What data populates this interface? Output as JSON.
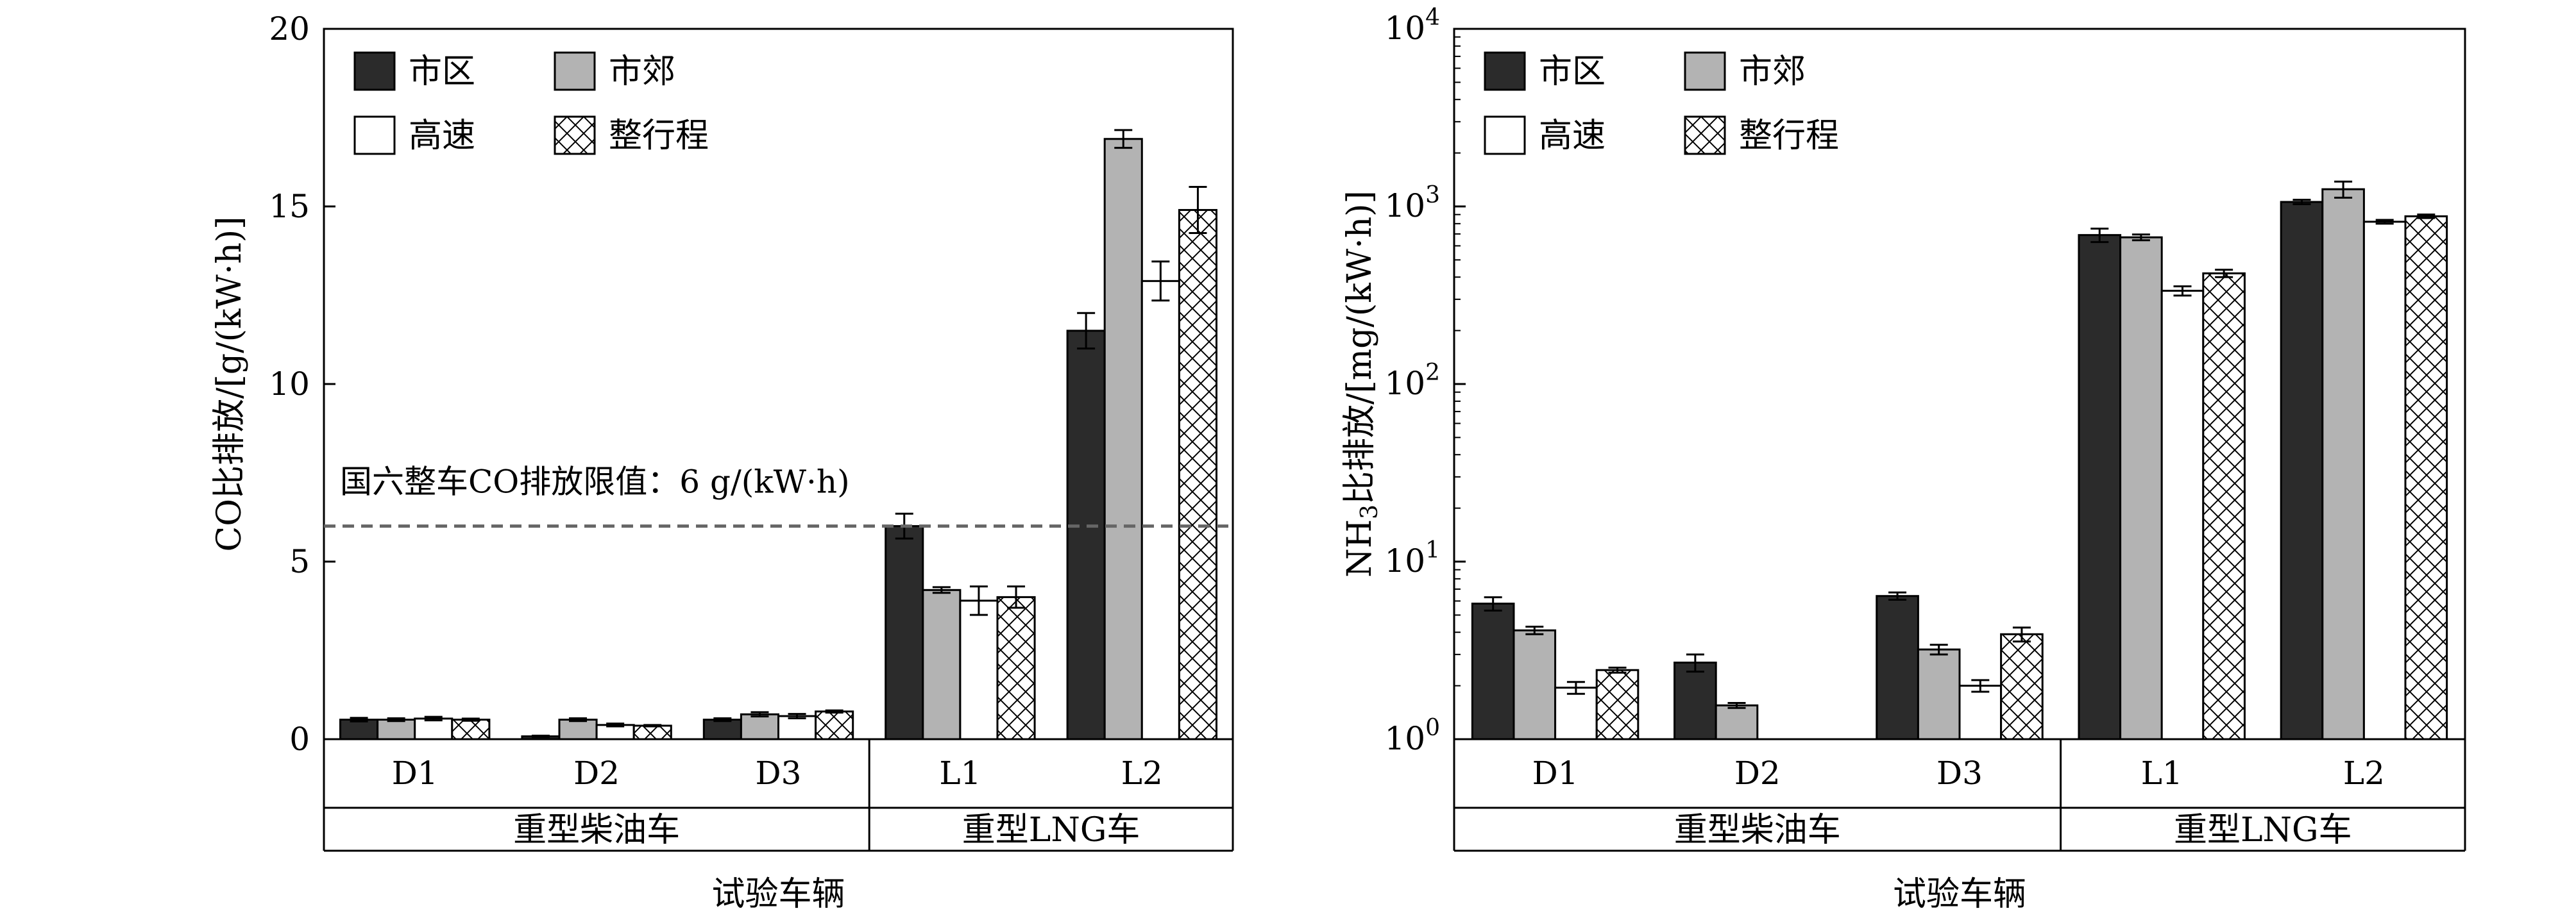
{
  "legend": [
    "市区",
    "市郊",
    "高速",
    "整行程"
  ],
  "styles": {
    "colors": [
      "#2b2b2b",
      "#b3b3b3",
      "#ffffff",
      "hatch"
    ],
    "stroke": "#000000",
    "threshold_line": "#666666"
  },
  "chart_data": [
    {
      "type": "bar",
      "scale": "linear",
      "ylabel": "CO比排放/[g/(kW·h)]",
      "xlabel": "试验车辆",
      "ylim": [
        0,
        20
      ],
      "ytick_values": [
        0,
        5,
        10,
        15,
        20
      ],
      "ytick_labels": [
        "0",
        "5",
        "10",
        "15",
        "20"
      ],
      "categories": [
        "D1",
        "D2",
        "D3",
        "L1",
        "L2"
      ],
      "groups": [
        {
          "label": "重型柴油车",
          "categories": [
            "D1",
            "D2",
            "D3"
          ]
        },
        {
          "label": "重型LNG车",
          "categories": [
            "L1",
            "L2"
          ]
        }
      ],
      "series": [
        {
          "name": "市区",
          "values": [
            0.55,
            0.08,
            0.55,
            6.0,
            11.5
          ],
          "errors": [
            0.05,
            0.02,
            0.04,
            0.35,
            0.5
          ]
        },
        {
          "name": "市郊",
          "values": [
            0.55,
            0.55,
            0.7,
            4.2,
            16.9
          ],
          "errors": [
            0.04,
            0.04,
            0.06,
            0.08,
            0.25
          ]
        },
        {
          "name": "高速",
          "values": [
            0.58,
            0.4,
            0.65,
            3.9,
            12.9
          ],
          "errors": [
            0.05,
            0.04,
            0.06,
            0.4,
            0.55
          ]
        },
        {
          "name": "整行程",
          "values": [
            0.55,
            0.38,
            0.78,
            4.0,
            14.9
          ],
          "errors": [
            0.03,
            0.02,
            0.03,
            0.3,
            0.65
          ]
        }
      ],
      "threshold": {
        "value": 6,
        "label": "国六整车CO排放限值：6 g/(kW·h)"
      }
    },
    {
      "type": "bar",
      "scale": "log",
      "ylabel_main": "NH",
      "ylabel_sub": "3",
      "ylabel_rest": "比排放/[mg/(kW·h)]",
      "xlabel": "试验车辆",
      "ylim": [
        1,
        10000
      ],
      "ytick_values": [
        1,
        10,
        100,
        1000,
        10000
      ],
      "ytick_base": "10",
      "ytick_exponents": [
        "0",
        "1",
        "2",
        "3",
        "4"
      ],
      "categories": [
        "D1",
        "D2",
        "D3",
        "L1",
        "L2"
      ],
      "groups": [
        {
          "label": "重型柴油车",
          "categories": [
            "D1",
            "D2",
            "D3"
          ]
        },
        {
          "label": "重型LNG车",
          "categories": [
            "L1",
            "L2"
          ]
        }
      ],
      "series": [
        {
          "name": "市区",
          "values": [
            5.8,
            2.7,
            6.4,
            690,
            1060
          ],
          "errors": [
            0.5,
            0.3,
            0.3,
            60,
            30
          ]
        },
        {
          "name": "市郊",
          "values": [
            4.1,
            1.55,
            3.2,
            670,
            1250
          ],
          "errors": [
            0.2,
            0.05,
            0.2,
            25,
            130
          ]
        },
        {
          "name": "高速",
          "values": [
            1.95,
            null,
            2.0,
            335,
            820
          ],
          "errors": [
            0.15,
            null,
            0.15,
            20,
            20
          ]
        },
        {
          "name": "整行程",
          "values": [
            2.45,
            null,
            3.9,
            420,
            880
          ],
          "errors": [
            0.08,
            null,
            0.35,
            20,
            20
          ]
        }
      ]
    }
  ]
}
